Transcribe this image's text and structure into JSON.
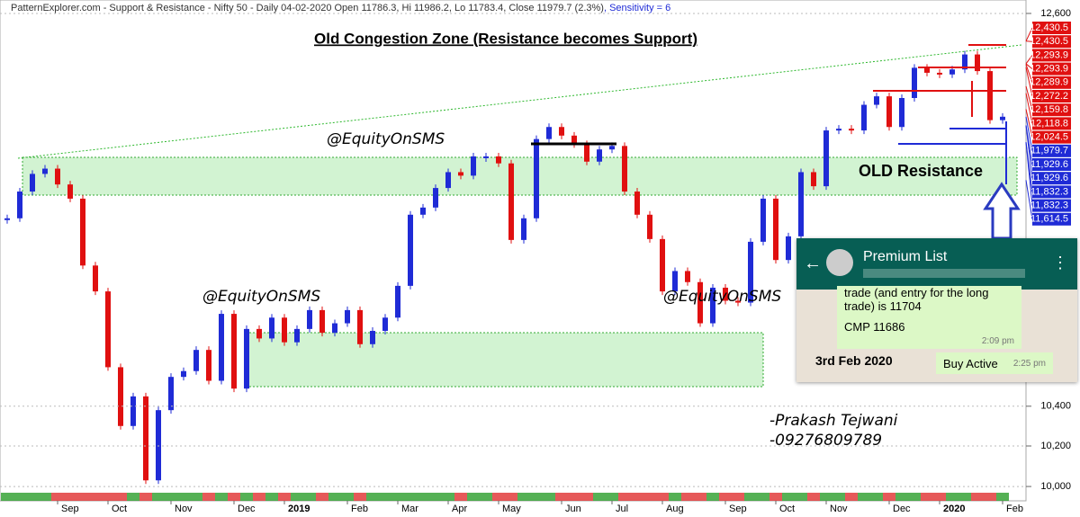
{
  "header": {
    "text": "PatternExplorer.com - Support & Resistance - Nifty 50 - Daily 04-02-2020 Open 11786.3, Hi 11986.2, Lo 11783.4, Close 11979.7 (2.3%)",
    "sensitivity": ", Sensitivity = 6"
  },
  "chart_data": {
    "type": "candle",
    "title": "Old Congestion Zone (Resistance becomes Support)",
    "categories": [
      null,
      null,
      null,
      null,
      "Sep",
      null,
      null,
      null,
      "Oct",
      null,
      null,
      null,
      null,
      "Nov",
      null,
      null,
      null,
      null,
      "Dec",
      null,
      null,
      null,
      "2019",
      null,
      null,
      null,
      null,
      "Feb",
      null,
      null,
      null,
      "Mar",
      null,
      null,
      null,
      "Apr",
      null,
      null,
      null,
      "May",
      null,
      null,
      null,
      null,
      "Jun",
      null,
      null,
      null,
      "Jul",
      null,
      null,
      null,
      "Aug",
      null,
      null,
      null,
      null,
      "Sep",
      null,
      null,
      null,
      "Oct",
      null,
      null,
      null,
      "Nov",
      null,
      null,
      null,
      null,
      "Dec",
      null,
      null,
      null,
      "2020",
      null,
      null,
      null,
      null,
      "Feb"
    ],
    "values": [
      11400,
      11550,
      11650,
      11680,
      11590,
      11510,
      11140,
      11000,
      10600,
      10300,
      10450,
      10030,
      10380,
      10550,
      10580,
      10690,
      10530,
      10880,
      10490,
      10800,
      10750,
      10860,
      10730,
      10800,
      10900,
      10780,
      10830,
      10900,
      10720,
      10790,
      10860,
      11030,
      11420,
      11460,
      11570,
      11660,
      11640,
      11750,
      11750,
      11710,
      11280,
      11400,
      11850,
      11920,
      11870,
      11820,
      11720,
      11790,
      11810,
      11550,
      11420,
      11285,
      11000,
      11110,
      11050,
      10830,
      11020,
      10950,
      10940,
      11270,
      11510,
      11170,
      11300,
      11660,
      11580,
      11900,
      11910,
      11900,
      12050,
      12100,
      11920,
      12090,
      12270,
      12240,
      12230,
      12260,
      12350,
      12250,
      11960,
      11980
    ],
    "up_color": "#1f2bd6",
    "down_color": "#e01010",
    "log_scale": true,
    "ylim": [
      9939,
      12683
    ],
    "yticks": [
      {
        "value": 10000,
        "label": "10,000"
      },
      {
        "value": 10200,
        "label": "10,200"
      },
      {
        "value": 10400,
        "label": "10,400"
      },
      {
        "value": 12600,
        "label": "12,600"
      }
    ],
    "price_labels": [
      {
        "value": 12430.5,
        "label": "12,430.5",
        "color": "#e01010"
      },
      {
        "value": 12430.5,
        "label": "12,430.5",
        "color": "#e01010"
      },
      {
        "value": 12293.9,
        "label": "12,293.9",
        "color": "#e01010"
      },
      {
        "value": 12293.9,
        "label": "12,293.9",
        "color": "#e01010"
      },
      {
        "value": 12289.9,
        "label": "12,289.9",
        "color": "#e01010"
      },
      {
        "value": 12272.2,
        "label": "12,272.2",
        "color": "#e01010"
      },
      {
        "value": 12159.8,
        "label": "12,159.8",
        "color": "#e01010"
      },
      {
        "value": 12118.8,
        "label": "12,118.8",
        "color": "#e01010"
      },
      {
        "value": 12024.5,
        "label": "12,024.5",
        "color": "#e01010"
      },
      {
        "value": 11979.7,
        "label": "11,979.7",
        "color": "#1f2bd6"
      },
      {
        "value": 11929.6,
        "label": "11,929.6",
        "color": "#1f2bd6"
      },
      {
        "value": 11929.6,
        "label": "11,929.6",
        "color": "#1f2bd6"
      },
      {
        "value": 11832.3,
        "label": "11,832.3",
        "color": "#1f2bd6"
      },
      {
        "value": 11832.3,
        "label": "11,832.3",
        "color": "#1f2bd6"
      },
      {
        "value": 11614.5,
        "label": "11,614.5",
        "color": "#1f2bd6"
      }
    ],
    "annotations": {
      "resistance": "OLD Resistance",
      "handle1": "@EquityOnSMS",
      "handle2": "@EquityOnSMS",
      "handle3": "@EquityOnSMS",
      "author": "-Prakash Tejwani",
      "phone": "-09276809789"
    }
  },
  "chat": {
    "title": "Premium List",
    "message1": "trade (and entry for the long trade) is 11704",
    "message2": "CMP 11686",
    "time1": "2:09 pm",
    "date": "3rd Feb 2020",
    "message3": "Buy Active",
    "time2": "2:25 pm"
  }
}
